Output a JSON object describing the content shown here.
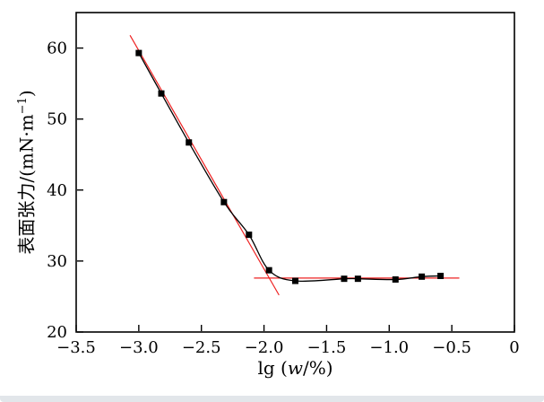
{
  "chart_data": {
    "type": "scatter",
    "title": "",
    "xlabel": {
      "pre": "lg (",
      "italic": "w",
      "post": "/%)"
    },
    "ylabel": {
      "pre": "表面张力/(mN·m",
      "sup": "−1",
      "post": ")"
    },
    "xlim": [
      -3.5,
      0
    ],
    "ylim": [
      20,
      65
    ],
    "grid": false,
    "legend": "none",
    "frame_color": "#000000",
    "background": "#ffffff",
    "xticks": {
      "values": [
        -3.5,
        -3.0,
        -2.5,
        -2.0,
        -1.5,
        -1.0,
        -0.5,
        0
      ],
      "labels": [
        "−3.5",
        "−3.0",
        "−2.5",
        "−2.0",
        "−1.5",
        "−1.0",
        "−0.5",
        "0"
      ]
    },
    "yticks": {
      "values": [
        20,
        30,
        40,
        50,
        60
      ],
      "labels": [
        "20",
        "30",
        "40",
        "50",
        "60"
      ]
    },
    "series": [
      {
        "name": "surface-tension-vs-lg-w",
        "marker": "square",
        "color": "#000000",
        "points": [
          [
            -3.0,
            59.3
          ],
          [
            -2.82,
            53.6
          ],
          [
            -2.6,
            46.7
          ],
          [
            -2.32,
            38.3
          ],
          [
            -2.12,
            33.7
          ],
          [
            -1.96,
            28.7
          ],
          [
            -1.75,
            27.2
          ],
          [
            -1.36,
            27.5
          ],
          [
            -1.25,
            27.5
          ],
          [
            -0.95,
            27.4
          ],
          [
            -0.74,
            27.8
          ],
          [
            -0.59,
            27.9
          ]
        ]
      }
    ],
    "annotation_lines": [
      {
        "name": "tangent-line-descending",
        "color": "#ee2222",
        "x1": -3.07,
        "y1": 61.8,
        "x2": -1.88,
        "y2": 25.2
      },
      {
        "name": "plateau-line-horizontal",
        "color": "#ee2222",
        "x1": -2.08,
        "y1": 27.6,
        "x2": -0.44,
        "y2": 27.6
      }
    ]
  }
}
